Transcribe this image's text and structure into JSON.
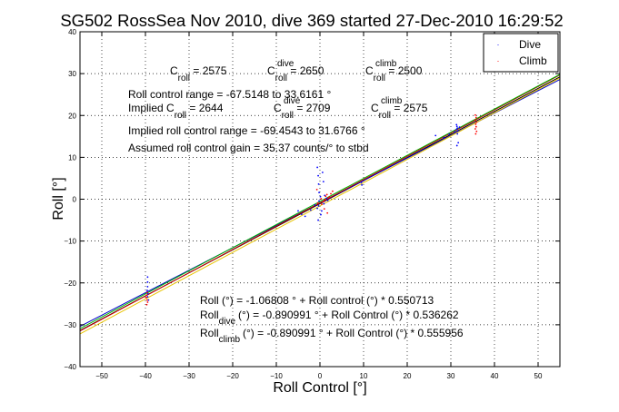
{
  "chart_data": {
    "type": "scatter",
    "title": "SG502 RossSea Nov 2010, dive 369 started 27-Dec-2010 16:29:52",
    "xlabel": "Roll Control [°]",
    "ylabel": "Roll [°]",
    "xlim": [
      -55,
      55
    ],
    "ylim": [
      -40,
      40
    ],
    "xticks": [
      -50,
      -40,
      -30,
      -20,
      -10,
      0,
      10,
      20,
      30,
      40,
      50
    ],
    "yticks": [
      -40,
      -30,
      -20,
      -10,
      0,
      10,
      20,
      30,
      40
    ],
    "grid": true,
    "legend_position": "top-right",
    "legend": [
      {
        "label": "Dive",
        "color": "#0000ff"
      },
      {
        "label": "Climb",
        "color": "#ff0000"
      }
    ],
    "series": [
      {
        "name": "Dive",
        "color": "#0000ff",
        "points": [
          [
            -39.5,
            -18.6
          ],
          [
            -39.5,
            -19.8
          ],
          [
            -39.5,
            -20.9
          ],
          [
            -39.6,
            -21.8
          ],
          [
            -39.4,
            -22.6
          ],
          [
            -39.5,
            -23.3
          ],
          [
            -39.3,
            -24.1
          ],
          [
            -5.0,
            -2.8
          ],
          [
            -4.2,
            -3.6
          ],
          [
            -3.4,
            -4.1
          ],
          [
            -2.1,
            -2.6
          ],
          [
            -1.2,
            -1.4
          ],
          [
            -0.6,
            7.6
          ],
          [
            -0.4,
            5.6
          ],
          [
            -0.3,
            3.6
          ],
          [
            -0.2,
            1.6
          ],
          [
            0.1,
            0.6
          ],
          [
            -0.2,
            -0.4
          ],
          [
            -0.3,
            -1.6
          ],
          [
            -0.6,
            -2.2
          ],
          [
            0.4,
            -2.8
          ],
          [
            0.9,
            -1.1
          ],
          [
            0.2,
            -3.7
          ],
          [
            -0.4,
            -5.0
          ],
          [
            0.6,
            6.4
          ],
          [
            0.8,
            4.2
          ],
          [
            1.1,
            0.9
          ],
          [
            1.5,
            0.2
          ],
          [
            1.8,
            -0.3
          ],
          [
            2.2,
            0.4
          ],
          [
            9.5,
            4.0
          ],
          [
            9.6,
            3.4
          ],
          [
            26.5,
            15.2
          ],
          [
            28.4,
            14.7
          ],
          [
            29.6,
            15.5
          ],
          [
            30.9,
            16.1
          ],
          [
            31.3,
            17.8
          ],
          [
            31.4,
            17.4
          ],
          [
            31.5,
            17.0
          ],
          [
            31.3,
            16.7
          ],
          [
            31.6,
            16.3
          ],
          [
            31.5,
            15.6
          ],
          [
            31.7,
            13.5
          ],
          [
            31.4,
            12.8
          ],
          [
            32.0,
            17.2
          ]
        ]
      },
      {
        "name": "Climb",
        "color": "#ff0000",
        "points": [
          [
            -39.6,
            -22.3
          ],
          [
            -39.7,
            -22.9
          ],
          [
            -39.8,
            -23.5
          ],
          [
            -39.6,
            -24.1
          ],
          [
            -39.5,
            -24.6
          ],
          [
            -39.7,
            -25.2
          ],
          [
            -0.7,
            2.3
          ],
          [
            -0.5,
            -0.9
          ],
          [
            0.4,
            -1.2
          ],
          [
            0.8,
            -0.6
          ],
          [
            1.1,
            -0.1
          ],
          [
            1.3,
            0.7
          ],
          [
            1.6,
            1.1
          ],
          [
            1.9,
            0.3
          ],
          [
            2.2,
            0.5
          ],
          [
            2.5,
            1.3
          ],
          [
            2.9,
            1.9
          ],
          [
            1.0,
            -2.3
          ],
          [
            1.7,
            -3.3
          ],
          [
            0.3,
            0.1
          ],
          [
            35.6,
            20.1
          ],
          [
            35.8,
            19.5
          ],
          [
            35.6,
            18.9
          ],
          [
            35.9,
            18.4
          ],
          [
            35.7,
            17.9
          ],
          [
            35.8,
            17.3
          ],
          [
            35.6,
            16.8
          ],
          [
            35.9,
            16.2
          ],
          [
            35.7,
            15.6
          ]
        ]
      }
    ],
    "fit_lines": [
      {
        "label": "Roll (°) = -1.06808 ° + Roll control (°) * 0.550713",
        "intercept": -1.06808,
        "slope": 0.550713,
        "color": "#000000"
      },
      {
        "label": "Roll dive (°) = -0.890991 ° + Roll Control (°) * 0.536262",
        "intercept": -0.890991,
        "slope": 0.536262,
        "color": "#0000cc"
      },
      {
        "label": "Roll climb (°) = -0.890991 ° + Roll Control (°) * 0.555956",
        "intercept": -0.890991,
        "slope": 0.555956,
        "color": "#cc0000"
      },
      {
        "intercept": -0.55,
        "slope": 0.552,
        "color": "#00b000"
      },
      {
        "intercept": -1.6,
        "slope": 0.556,
        "color": "#e8c400"
      }
    ],
    "annotations": {
      "c_roll_main": "C",
      "c_roll_main_sub": "roll",
      "c_roll_main_value": " = 2575",
      "c_roll_dive": "C",
      "c_roll_dive_sup": "dive",
      "c_roll_dive_sub": "roll",
      "c_roll_dive_value": " = 2650",
      "c_roll_climb": "C",
      "c_roll_climb_sup": "climb",
      "c_roll_climb_sub": "roll",
      "c_roll_climb_value": " = 2500",
      "control_range": "Roll control range = -67.5148 to 33.6161 °",
      "implied_prefix": "Implied C",
      "implied_sub": "roll",
      "implied_value": " = 2644",
      "implied_dive": "C",
      "implied_dive_sup": "dive",
      "implied_dive_sub": "roll",
      "implied_dive_value": " = 2709",
      "implied_climb": "C",
      "implied_climb_sup": "climb",
      "implied_climb_sub": "roll",
      "implied_climb_value": " = 2575",
      "implied_range": "Implied roll control range = -69.4543 to 31.6766 °",
      "assumed_gain": "Assumed roll control gain = 35.37 counts/° to stbd",
      "fit_all": "Roll (°) = -1.06808 ° + Roll control (°) * 0.550713",
      "fit_dive_prefix": "Roll",
      "fit_dive_sub": "dive",
      "fit_dive_rest": "(°) = -0.890991 ° + Roll Control (°) * 0.536262",
      "fit_climb_prefix": "Roll",
      "fit_climb_sub": "climb",
      "fit_climb_rest": "(°) = -0.890991 ° + Roll Control (°) * 0.555956"
    }
  }
}
